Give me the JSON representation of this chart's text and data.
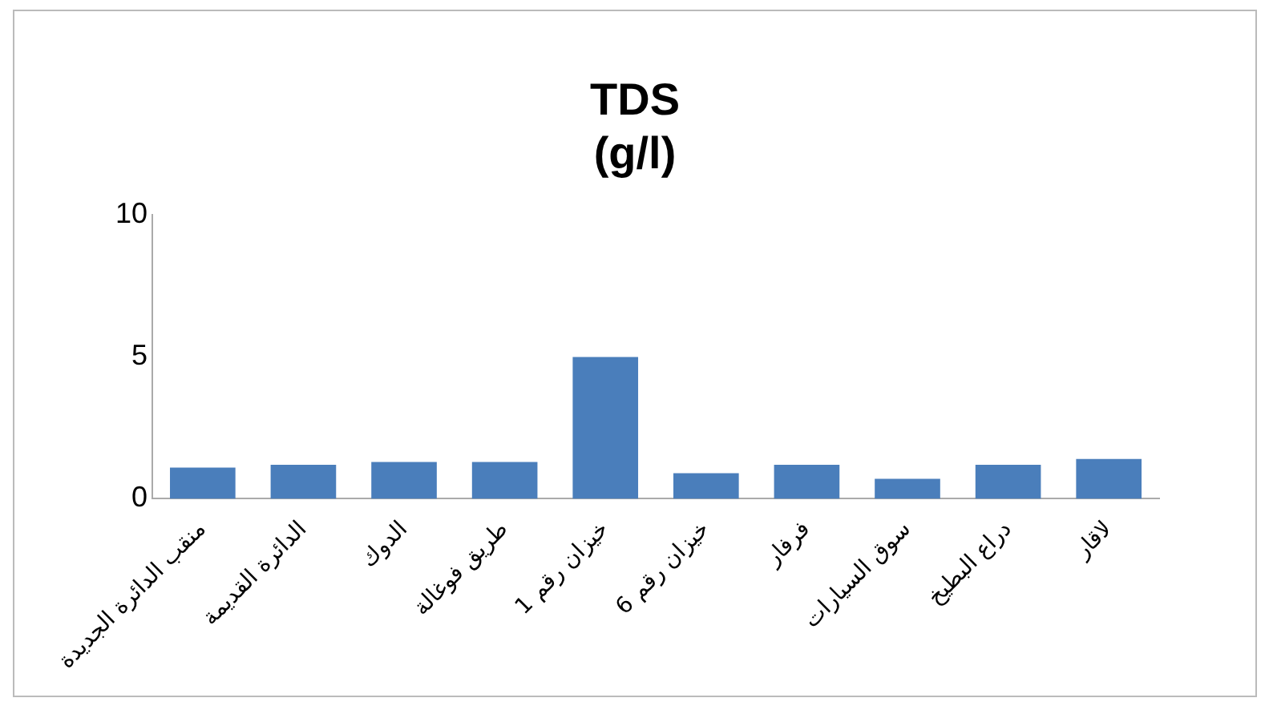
{
  "chart_data": {
    "type": "bar",
    "title": "TDS\n(g/l)",
    "categories": [
      "منقب الدائرة الجديدة",
      "الدائرة القديمة",
      "الدوك",
      "طريق فوغالة",
      "خيزان رقم 1",
      "خيزان رقم 6",
      "فرفار",
      "سوق السيارات",
      "دراع البطيخ",
      "لاقار"
    ],
    "values": [
      1.1,
      1.2,
      1.3,
      1.3,
      5.0,
      0.9,
      1.2,
      0.7,
      1.2,
      1.4
    ],
    "color": "#4a7ebb",
    "ylim": [
      0,
      10
    ],
    "yticks": [
      0,
      5,
      10
    ],
    "grid": false,
    "legend": false
  }
}
